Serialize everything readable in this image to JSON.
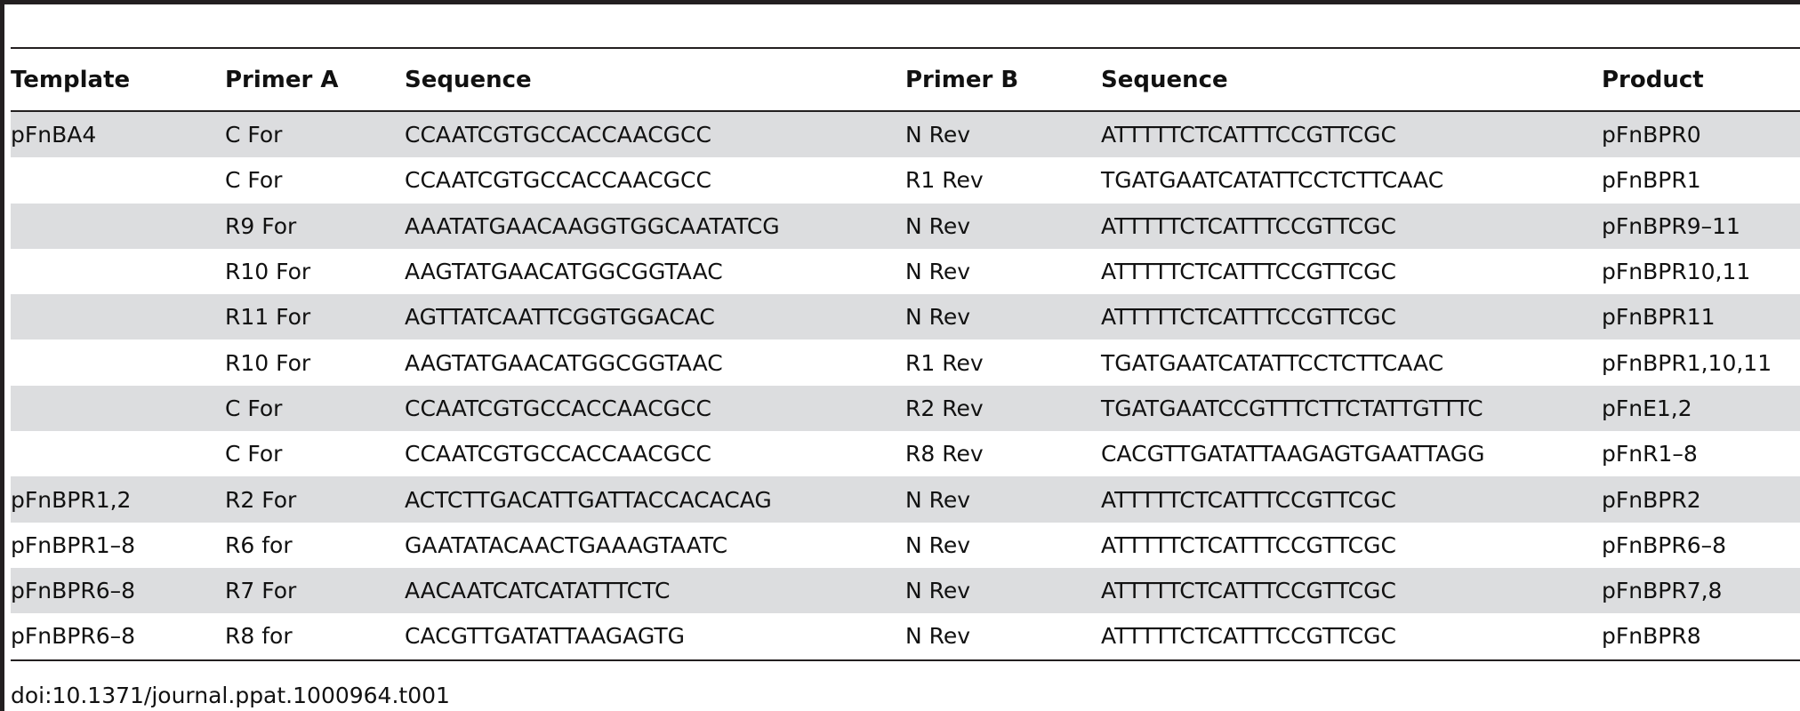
{
  "table": {
    "headers": [
      "Template",
      "Primer A",
      "Sequence",
      "Primer B",
      "Sequence",
      "Product"
    ],
    "rows": [
      [
        "pFnBA4",
        "C For",
        "CCAATCGTGCCACCAACGCC",
        "N Rev",
        "ATTTTTCTCATTTCCGTTCGC",
        "pFnBPR0"
      ],
      [
        "",
        "C For",
        "CCAATCGTGCCACCAACGCC",
        "R1 Rev",
        "TGATGAATCATATTCCTCTTCAAC",
        "pFnBPR1"
      ],
      [
        "",
        "R9 For",
        "AAATATGAACAAGGTGGCAATATCG",
        "N Rev",
        "ATTTTTCTCATTTCCGTTCGC",
        "pFnBPR9–11"
      ],
      [
        "",
        "R10 For",
        "AAGTATGAACATGGCGGTAAC",
        "N Rev",
        "ATTTTTCTCATTTCCGTTCGC",
        "pFnBPR10,11"
      ],
      [
        "",
        "R11 For",
        "AGTTATCAATTCGGTGGACAC",
        "N Rev",
        "ATTTTTCTCATTTCCGTTCGC",
        "pFnBPR11"
      ],
      [
        "",
        "R10 For",
        "AAGTATGAACATGGCGGTAAC",
        "R1 Rev",
        "TGATGAATCATATTCCTCTTCAAC",
        "pFnBPR1,10,11"
      ],
      [
        "",
        "C For",
        "CCAATCGTGCCACCAACGCC",
        "R2 Rev",
        "TGATGAATCCGTTTCTTCTATTGTTTC",
        "pFnE1,2"
      ],
      [
        "",
        "C For",
        "CCAATCGTGCCACCAACGCC",
        "R8 Rev",
        "CACGTTGATATTAAGAGTGAATTAGG",
        "pFnR1–8"
      ],
      [
        "pFnBPR1,2",
        "R2 For",
        "ACTCTTGACATTGATTACCACACAG",
        "N Rev",
        "ATTTTTCTCATTTCCGTTCGC",
        "pFnBPR2"
      ],
      [
        "pFnBPR1–8",
        "R6 for",
        "GAATATACAACTGAAAGTAATC",
        "N Rev",
        "ATTTTTCTCATTTCCGTTCGC",
        "pFnBPR6–8"
      ],
      [
        "pFnBPR6–8",
        "R7 For",
        "AACAATCATCATATTTCTC",
        "N Rev",
        "ATTTTTCTCATTTCCGTTCGC",
        "pFnBPR7,8"
      ],
      [
        "pFnBPR6–8",
        "R8 for",
        "CACGTTGATATTAAGAGTG",
        "N Rev",
        "ATTTTTCTCATTTCCGTTCGC",
        "pFnBPR8"
      ]
    ]
  },
  "caption": "doi:10.1371/journal.ppat.1000964.t001",
  "colors": {
    "row_shade": "#dcdddf",
    "rule": "#231f20"
  }
}
